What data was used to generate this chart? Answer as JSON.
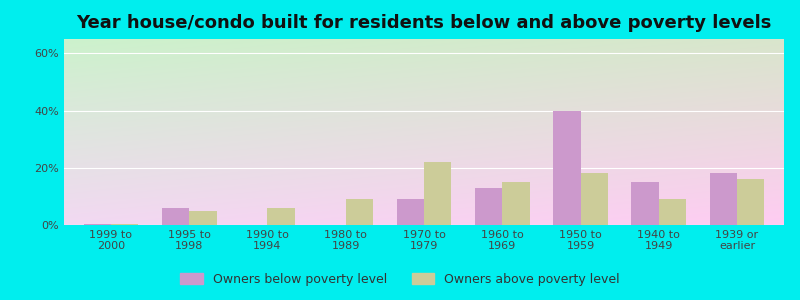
{
  "title": "Year house/condo built for residents below and above poverty levels",
  "categories": [
    "1999 to\n2000",
    "1995 to\n1998",
    "1990 to\n1994",
    "1980 to\n1989",
    "1970 to\n1979",
    "1960 to\n1969",
    "1950 to\n1959",
    "1940 to\n1949",
    "1939 or\nearlier"
  ],
  "below_poverty": [
    0.5,
    6.0,
    0.0,
    0.0,
    9.0,
    13.0,
    40.0,
    15.0,
    18.0
  ],
  "above_poverty": [
    0.5,
    5.0,
    6.0,
    9.0,
    22.0,
    15.0,
    18.0,
    9.0,
    16.0
  ],
  "below_color": "#cc99cc",
  "above_color": "#cccc99",
  "bg_color_top_left": "#aaffcc",
  "bg_color_bottom_right": "#eeffee",
  "outer_bg": "#00eeee",
  "ylim_max": 65,
  "yticks": [
    0,
    20,
    40,
    60
  ],
  "ytick_labels": [
    "0%",
    "20%",
    "40%",
    "60%"
  ],
  "bar_width": 0.35,
  "legend_below": "Owners below poverty level",
  "legend_above": "Owners above poverty level",
  "title_fontsize": 13,
  "tick_fontsize": 8.0,
  "legend_fontsize": 9,
  "gridline_color": "#ffffff"
}
